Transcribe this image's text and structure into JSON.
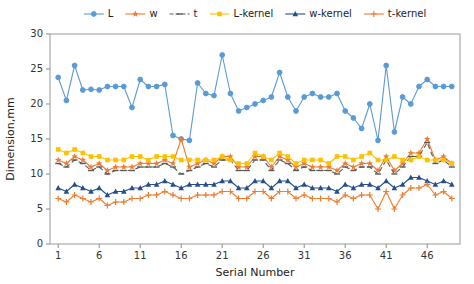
{
  "chart_data": {
    "type": "line",
    "x_label": "Serial Number",
    "y_label": "Dimension,mm",
    "x": [
      1,
      2,
      3,
      4,
      5,
      6,
      7,
      8,
      9,
      10,
      11,
      12,
      13,
      14,
      15,
      16,
      17,
      18,
      19,
      20,
      21,
      22,
      23,
      24,
      25,
      26,
      27,
      28,
      29,
      30,
      31,
      32,
      33,
      34,
      35,
      36,
      37,
      38,
      39,
      40,
      41,
      42,
      43,
      44,
      45,
      46,
      47,
      48,
      49
    ],
    "xlim": [
      0,
      50
    ],
    "xticks": [
      1,
      6,
      11,
      16,
      21,
      26,
      31,
      36,
      41,
      46
    ],
    "ylim": [
      0,
      30
    ],
    "yticks": [
      0,
      5,
      10,
      15,
      20,
      25,
      30
    ],
    "grid": false,
    "legend": "top",
    "series": [
      {
        "name": "L",
        "color": "#5B9BD5",
        "marker": "circle",
        "line_style": "solid",
        "values": [
          23.8,
          20.5,
          25.5,
          22.0,
          22.1,
          22.0,
          22.5,
          22.5,
          22.5,
          19.5,
          23.5,
          22.5,
          22.5,
          22.8,
          15.5,
          15.0,
          14.8,
          23.0,
          21.5,
          21.2,
          27.0,
          21.5,
          19.0,
          19.5,
          20.0,
          20.5,
          21.0,
          24.5,
          21.0,
          19.0,
          21.0,
          21.5,
          21.0,
          21.0,
          21.5,
          19.0,
          18.0,
          16.5,
          20.0,
          14.8,
          25.5,
          16.0,
          21.0,
          20.0,
          22.5,
          23.5,
          22.5,
          22.5,
          22.5
        ]
      },
      {
        "name": "w",
        "color": "#ED7D31",
        "marker": "star",
        "line_style": "solid",
        "values": [
          12.0,
          11.5,
          12.5,
          12.0,
          11.0,
          11.5,
          10.5,
          11.0,
          11.0,
          11.0,
          11.5,
          11.5,
          11.5,
          12.0,
          11.5,
          15.0,
          11.0,
          11.5,
          12.0,
          11.5,
          12.5,
          12.5,
          11.0,
          11.0,
          12.5,
          12.5,
          11.0,
          12.5,
          12.0,
          11.0,
          11.5,
          11.0,
          11.0,
          11.0,
          10.5,
          11.5,
          11.0,
          11.5,
          11.5,
          10.5,
          12.5,
          10.5,
          11.5,
          13.0,
          13.0,
          15.0,
          12.0,
          12.5,
          11.5
        ]
      },
      {
        "name": "t",
        "color": "#595959",
        "marker": "dash",
        "line_style": "dashed",
        "values": [
          11.5,
          11.0,
          12.0,
          11.5,
          10.5,
          11.0,
          10.0,
          10.5,
          10.5,
          10.5,
          11.0,
          11.0,
          11.0,
          11.5,
          11.0,
          10.0,
          10.5,
          11.0,
          11.5,
          11.0,
          12.0,
          12.0,
          10.5,
          10.5,
          12.0,
          12.0,
          10.5,
          12.0,
          11.5,
          10.5,
          11.0,
          10.5,
          10.5,
          10.5,
          10.0,
          11.0,
          10.5,
          11.0,
          11.0,
          10.0,
          12.0,
          10.0,
          11.0,
          12.5,
          12.5,
          14.5,
          11.5,
          12.0,
          11.0
        ]
      },
      {
        "name": "L-kernel",
        "color": "#FFC000",
        "marker": "square",
        "line_style": "solid",
        "values": [
          13.5,
          13.0,
          13.5,
          13.0,
          12.5,
          12.5,
          12.0,
          12.0,
          12.0,
          12.5,
          12.5,
          12.0,
          12.5,
          12.5,
          12.5,
          12.0,
          12.0,
          12.0,
          12.0,
          12.0,
          12.5,
          12.0,
          11.5,
          11.5,
          13.0,
          12.5,
          12.0,
          13.0,
          12.5,
          11.5,
          12.0,
          12.0,
          12.0,
          11.5,
          12.5,
          12.5,
          12.0,
          12.5,
          13.0,
          12.0,
          12.0,
          12.5,
          12.0,
          12.0,
          12.5,
          12.0,
          12.0,
          12.0,
          11.5
        ]
      },
      {
        "name": "w-kernel",
        "color": "#264E8C",
        "marker": "triangle",
        "line_style": "solid",
        "values": [
          8.0,
          7.5,
          8.5,
          8.0,
          7.5,
          8.0,
          7.0,
          7.5,
          7.5,
          8.0,
          8.0,
          8.5,
          8.5,
          9.0,
          8.5,
          8.0,
          8.5,
          8.5,
          8.5,
          8.5,
          9.0,
          9.0,
          8.0,
          8.0,
          9.0,
          9.0,
          8.0,
          9.0,
          9.0,
          8.0,
          8.5,
          8.0,
          8.0,
          8.0,
          7.5,
          8.5,
          8.0,
          8.5,
          8.5,
          8.0,
          9.0,
          8.0,
          8.5,
          9.5,
          9.5,
          9.0,
          8.5,
          9.0,
          8.5
        ]
      },
      {
        "name": "t-kernel",
        "color": "#ED7D31",
        "marker": "plus",
        "line_style": "solid",
        "values": [
          6.5,
          6.0,
          7.0,
          6.5,
          6.0,
          6.5,
          5.5,
          6.0,
          6.0,
          6.5,
          6.5,
          7.0,
          7.0,
          7.5,
          7.0,
          6.5,
          6.5,
          7.0,
          7.0,
          7.0,
          7.5,
          7.5,
          6.5,
          6.5,
          7.5,
          7.5,
          6.5,
          7.5,
          7.5,
          6.5,
          7.0,
          6.5,
          6.5,
          6.5,
          6.0,
          7.0,
          6.5,
          7.0,
          7.0,
          5.0,
          7.5,
          5.0,
          7.0,
          8.0,
          8.0,
          8.5,
          7.0,
          7.5,
          6.5
        ]
      }
    ]
  }
}
